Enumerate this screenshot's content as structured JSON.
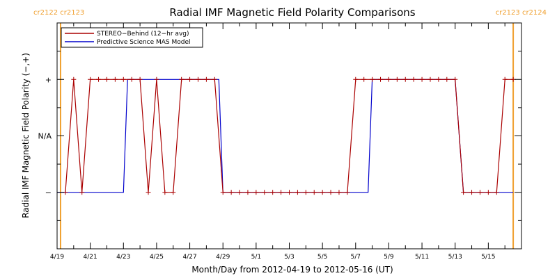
{
  "chart_data": {
    "type": "line",
    "title": "Radial IMF Magnetic Field Polarity Comparisons",
    "xlabel": "Month/Day from 2012-04-19 to 2012-05-16 (UT)",
    "ylabel": "Radial IMF Magnetic Field Polarity (−,+)",
    "xlim": [
      "2012-04-19T00:00",
      "2012-05-17T00:00"
    ],
    "ylim": [
      -2,
      2
    ],
    "x_ticks": [
      {
        "label": "4/19",
        "day": "2012-04-19"
      },
      {
        "label": "4/21",
        "day": "2012-04-21"
      },
      {
        "label": "4/23",
        "day": "2012-04-23"
      },
      {
        "label": "4/25",
        "day": "2012-04-25"
      },
      {
        "label": "4/27",
        "day": "2012-04-27"
      },
      {
        "label": "4/29",
        "day": "2012-04-29"
      },
      {
        "label": "5/1",
        "day": "2012-05-01"
      },
      {
        "label": "5/3",
        "day": "2012-05-03"
      },
      {
        "label": "5/5",
        "day": "2012-05-05"
      },
      {
        "label": "5/7",
        "day": "2012-05-07"
      },
      {
        "label": "5/9",
        "day": "2012-05-09"
      },
      {
        "label": "5/11",
        "day": "2012-05-11"
      },
      {
        "label": "5/13",
        "day": "2012-05-13"
      },
      {
        "label": "5/15",
        "day": "2012-05-15"
      }
    ],
    "y_ticks": [
      {
        "label": "+",
        "value": 1
      },
      {
        "label": "N/A",
        "value": 0
      },
      {
        "label": "−",
        "value": -1
      }
    ],
    "carrington_rotations": [
      {
        "date": "2012-04-19T05:00",
        "label_left": "cr2122",
        "label_right": "cr2123",
        "label_side": "left"
      },
      {
        "date": "2012-05-16T12:00",
        "label_left": "cr2123",
        "label_right": "cr2124",
        "label_side": "right"
      }
    ],
    "colors": {
      "stereo": "#aa0000",
      "mas": "#0000cc",
      "rotation_line": "#f0a030",
      "axes": "#000000"
    },
    "legend": {
      "position": "top-left"
    },
    "series": [
      {
        "name": "STEREO−Behind (12−hr avg)",
        "key": "stereo",
        "markers": true,
        "points": [
          [
            "2012-04-19T12:00",
            -1
          ],
          [
            "2012-04-20T00:00",
            1
          ],
          [
            "2012-04-20T12:00",
            -1
          ],
          [
            "2012-04-21T00:00",
            1
          ],
          [
            "2012-04-21T12:00",
            1
          ],
          [
            "2012-04-22T00:00",
            1
          ],
          [
            "2012-04-22T12:00",
            1
          ],
          [
            "2012-04-23T00:00",
            1
          ],
          [
            "2012-04-23T12:00",
            1
          ],
          [
            "2012-04-24T00:00",
            1
          ],
          [
            "2012-04-24T12:00",
            -1
          ],
          [
            "2012-04-25T00:00",
            1
          ],
          [
            "2012-04-25T12:00",
            -1
          ],
          [
            "2012-04-26T00:00",
            -1
          ],
          [
            "2012-04-26T12:00",
            1
          ],
          [
            "2012-04-27T00:00",
            1
          ],
          [
            "2012-04-27T12:00",
            1
          ],
          [
            "2012-04-28T00:00",
            1
          ],
          [
            "2012-04-28T12:00",
            1
          ],
          [
            "2012-04-29T00:00",
            -1
          ],
          [
            "2012-04-29T12:00",
            -1
          ],
          [
            "2012-04-30T00:00",
            -1
          ],
          [
            "2012-04-30T12:00",
            -1
          ],
          [
            "2012-05-01T00:00",
            -1
          ],
          [
            "2012-05-01T12:00",
            -1
          ],
          [
            "2012-05-02T00:00",
            -1
          ],
          [
            "2012-05-02T12:00",
            -1
          ],
          [
            "2012-05-03T00:00",
            -1
          ],
          [
            "2012-05-03T12:00",
            -1
          ],
          [
            "2012-05-04T00:00",
            -1
          ],
          [
            "2012-05-04T12:00",
            -1
          ],
          [
            "2012-05-05T00:00",
            -1
          ],
          [
            "2012-05-05T12:00",
            -1
          ],
          [
            "2012-05-06T00:00",
            -1
          ],
          [
            "2012-05-06T12:00",
            -1
          ],
          [
            "2012-05-07T00:00",
            1
          ],
          [
            "2012-05-07T12:00",
            1
          ],
          [
            "2012-05-08T00:00",
            1
          ],
          [
            "2012-05-08T12:00",
            1
          ],
          [
            "2012-05-09T00:00",
            1
          ],
          [
            "2012-05-09T12:00",
            1
          ],
          [
            "2012-05-10T00:00",
            1
          ],
          [
            "2012-05-10T12:00",
            1
          ],
          [
            "2012-05-11T00:00",
            1
          ],
          [
            "2012-05-11T12:00",
            1
          ],
          [
            "2012-05-12T00:00",
            1
          ],
          [
            "2012-05-12T12:00",
            1
          ],
          [
            "2012-05-13T00:00",
            1
          ],
          [
            "2012-05-13T12:00",
            -1
          ],
          [
            "2012-05-14T00:00",
            -1
          ],
          [
            "2012-05-14T12:00",
            -1
          ],
          [
            "2012-05-15T00:00",
            -1
          ],
          [
            "2012-05-15T12:00",
            -1
          ],
          [
            "2012-05-16T00:00",
            1
          ],
          [
            "2012-05-16T12:00",
            1
          ]
        ]
      },
      {
        "name": "Predictive Science MAS Model",
        "key": "mas",
        "markers": false,
        "points": [
          [
            "2012-04-19T00:00",
            -1
          ],
          [
            "2012-04-23T00:00",
            -1
          ],
          [
            "2012-04-23T06:00",
            1
          ],
          [
            "2012-04-28T18:00",
            1
          ],
          [
            "2012-04-29T00:00",
            -1
          ],
          [
            "2012-05-07T18:00",
            -1
          ],
          [
            "2012-05-08T00:00",
            1
          ],
          [
            "2012-05-13T00:00",
            1
          ],
          [
            "2012-05-13T12:00",
            -1
          ],
          [
            "2012-05-16T12:00",
            -1
          ]
        ]
      }
    ]
  }
}
